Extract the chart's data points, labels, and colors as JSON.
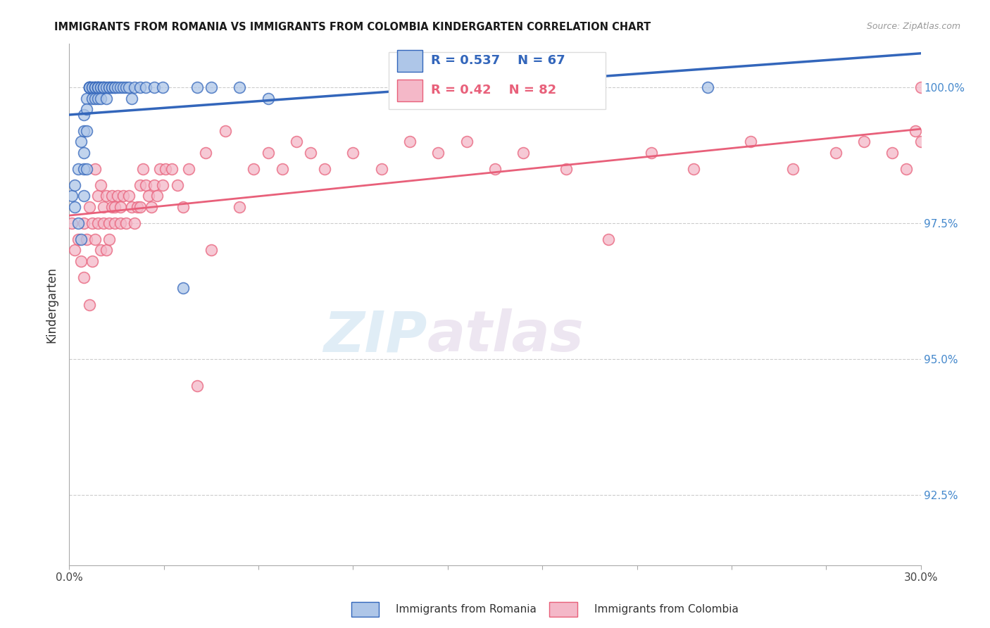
{
  "title": "IMMIGRANTS FROM ROMANIA VS IMMIGRANTS FROM COLOMBIA KINDERGARTEN CORRELATION CHART",
  "source": "Source: ZipAtlas.com",
  "ylabel": "Kindergarten",
  "ytick_labels": [
    "100.0%",
    "97.5%",
    "95.0%",
    "92.5%"
  ],
  "ytick_values": [
    1.0,
    0.975,
    0.95,
    0.925
  ],
  "xlim": [
    0.0,
    0.3
  ],
  "ylim": [
    0.912,
    1.008
  ],
  "romania_R": 0.537,
  "romania_N": 67,
  "colombia_R": 0.42,
  "colombia_N": 82,
  "romania_color": "#AEC6E8",
  "colombia_color": "#F4B8C8",
  "romania_line_color": "#3366BB",
  "colombia_line_color": "#E8607A",
  "legend_text_color_blue": "#3366BB",
  "legend_text_color_pink": "#E8607A",
  "legend_romania_label": "Immigrants from Romania",
  "legend_colombia_label": "Immigrants from Colombia",
  "watermark_zip": "ZIP",
  "watermark_atlas": "atlas",
  "grid_color": "#CCCCCC",
  "romania_scatter_x": [
    0.001,
    0.002,
    0.002,
    0.003,
    0.003,
    0.004,
    0.004,
    0.005,
    0.005,
    0.005,
    0.005,
    0.005,
    0.006,
    0.006,
    0.006,
    0.006,
    0.007,
    0.007,
    0.007,
    0.007,
    0.007,
    0.008,
    0.008,
    0.008,
    0.009,
    0.009,
    0.009,
    0.009,
    0.01,
    0.01,
    0.01,
    0.01,
    0.01,
    0.011,
    0.011,
    0.011,
    0.012,
    0.012,
    0.012,
    0.013,
    0.013,
    0.014,
    0.014,
    0.015,
    0.015,
    0.016,
    0.016,
    0.017,
    0.018,
    0.019,
    0.02,
    0.021,
    0.022,
    0.023,
    0.025,
    0.027,
    0.03,
    0.033,
    0.04,
    0.045,
    0.05,
    0.06,
    0.07,
    0.12,
    0.135,
    0.185,
    0.225
  ],
  "romania_scatter_y": [
    0.98,
    0.982,
    0.978,
    0.985,
    0.975,
    0.99,
    0.972,
    0.995,
    0.992,
    0.988,
    0.985,
    0.98,
    0.998,
    0.996,
    0.992,
    0.985,
    1.0,
    1.0,
    1.0,
    1.0,
    1.0,
    1.0,
    1.0,
    0.998,
    1.0,
    1.0,
    1.0,
    0.998,
    1.0,
    1.0,
    1.0,
    1.0,
    0.998,
    1.0,
    1.0,
    0.998,
    1.0,
    1.0,
    1.0,
    1.0,
    0.998,
    1.0,
    1.0,
    1.0,
    1.0,
    1.0,
    1.0,
    1.0,
    1.0,
    1.0,
    1.0,
    1.0,
    0.998,
    1.0,
    1.0,
    1.0,
    1.0,
    1.0,
    0.963,
    1.0,
    1.0,
    1.0,
    0.998,
    1.0,
    1.0,
    1.0,
    1.0
  ],
  "colombia_scatter_x": [
    0.001,
    0.002,
    0.003,
    0.004,
    0.005,
    0.005,
    0.006,
    0.007,
    0.007,
    0.008,
    0.008,
    0.009,
    0.009,
    0.01,
    0.01,
    0.011,
    0.011,
    0.012,
    0.012,
    0.013,
    0.013,
    0.014,
    0.014,
    0.015,
    0.015,
    0.016,
    0.016,
    0.017,
    0.018,
    0.018,
    0.019,
    0.02,
    0.021,
    0.022,
    0.023,
    0.024,
    0.025,
    0.025,
    0.026,
    0.027,
    0.028,
    0.029,
    0.03,
    0.031,
    0.032,
    0.033,
    0.034,
    0.036,
    0.038,
    0.04,
    0.042,
    0.045,
    0.048,
    0.05,
    0.055,
    0.06,
    0.065,
    0.07,
    0.075,
    0.08,
    0.085,
    0.09,
    0.1,
    0.11,
    0.12,
    0.13,
    0.14,
    0.15,
    0.16,
    0.175,
    0.19,
    0.205,
    0.22,
    0.24,
    0.255,
    0.27,
    0.28,
    0.29,
    0.295,
    0.298,
    0.3,
    0.3
  ],
  "colombia_scatter_y": [
    0.975,
    0.97,
    0.972,
    0.968,
    0.975,
    0.965,
    0.972,
    0.978,
    0.96,
    0.968,
    0.975,
    0.972,
    0.985,
    0.975,
    0.98,
    0.97,
    0.982,
    0.975,
    0.978,
    0.97,
    0.98,
    0.975,
    0.972,
    0.978,
    0.98,
    0.975,
    0.978,
    0.98,
    0.975,
    0.978,
    0.98,
    0.975,
    0.98,
    0.978,
    0.975,
    0.978,
    0.982,
    0.978,
    0.985,
    0.982,
    0.98,
    0.978,
    0.982,
    0.98,
    0.985,
    0.982,
    0.985,
    0.985,
    0.982,
    0.978,
    0.985,
    0.945,
    0.988,
    0.97,
    0.992,
    0.978,
    0.985,
    0.988,
    0.985,
    0.99,
    0.988,
    0.985,
    0.988,
    0.985,
    0.99,
    0.988,
    0.99,
    0.985,
    0.988,
    0.985,
    0.972,
    0.988,
    0.985,
    0.99,
    0.985,
    0.988,
    0.99,
    0.988,
    0.985,
    0.992,
    1.0,
    0.99
  ]
}
